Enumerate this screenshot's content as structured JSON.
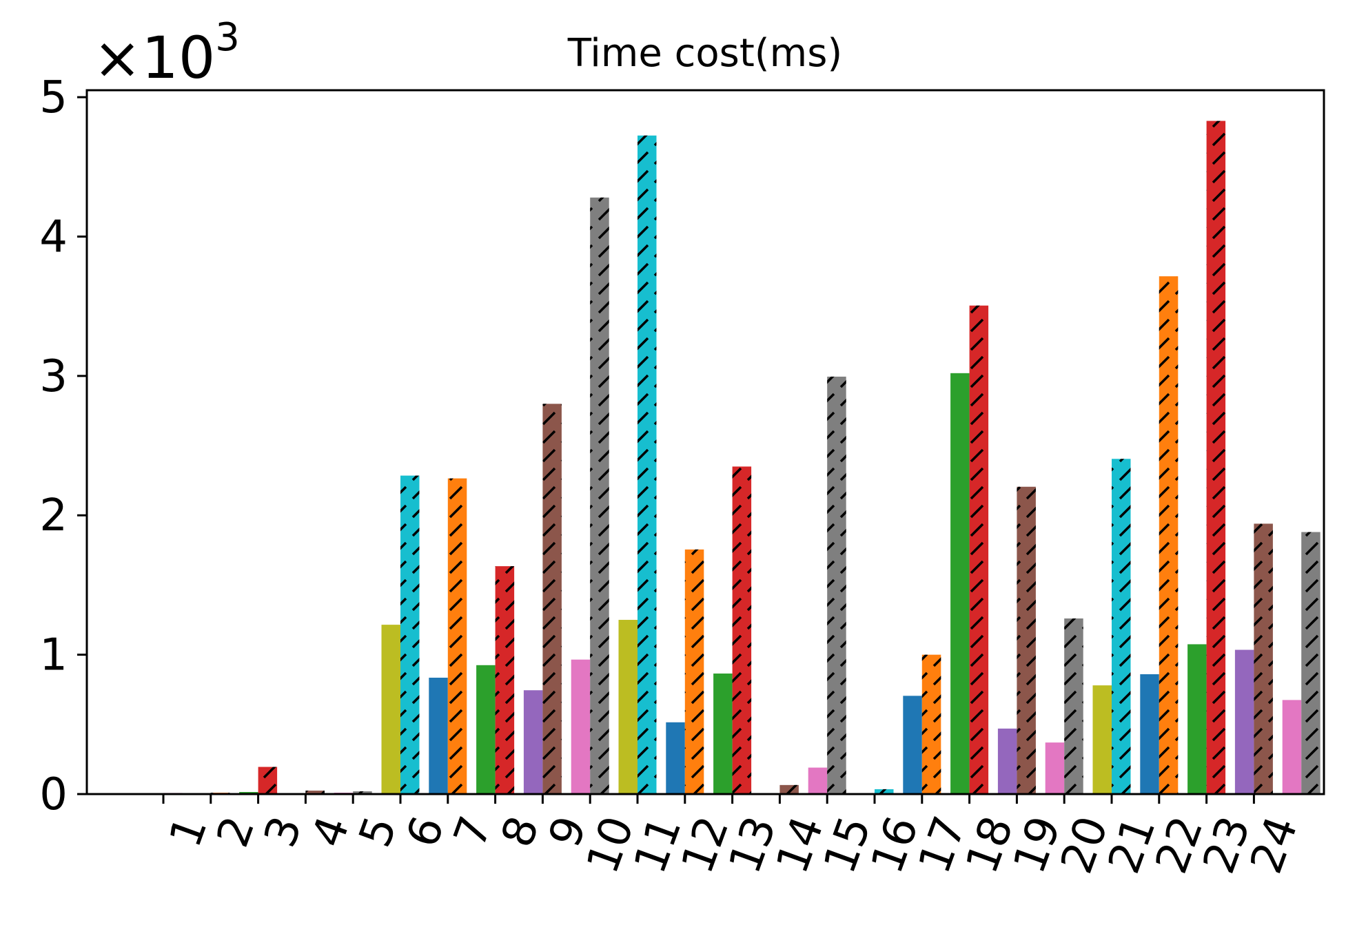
{
  "chart_data": {
    "type": "bar",
    "title": "Time cost(ms)",
    "scale_label_base": "×10",
    "scale_label_exp": "3",
    "scale_factor": 1000,
    "xlabel": "",
    "ylabel": "",
    "ylim": [
      0,
      5050
    ],
    "yticks": [
      0,
      1,
      2,
      3,
      4,
      5
    ],
    "categories": [
      "1",
      "2",
      "3",
      "4",
      "5",
      "6",
      "7",
      "8",
      "9",
      "10",
      "11",
      "12",
      "13",
      "14",
      "15",
      "16",
      "17",
      "18",
      "19",
      "20",
      "21",
      "22",
      "23",
      "24"
    ],
    "grid": false,
    "bars": [
      {
        "color": "#8c564b",
        "hatch": false,
        "value": 3
      },
      {
        "color": "#e377c2",
        "hatch": false,
        "value": 8
      },
      {
        "color": "#bcbd22",
        "hatch": false,
        "value": 5
      },
      {
        "color": "#ff7f0e",
        "hatch": true,
        "value": 10
      },
      {
        "color": "#2ca02c",
        "hatch": false,
        "value": 15
      },
      {
        "color": "#d62728",
        "hatch": true,
        "value": 195
      },
      {
        "color": "#9467bd",
        "hatch": false,
        "value": 5
      },
      {
        "color": "#8c564b",
        "hatch": true,
        "value": 25
      },
      {
        "color": "#e377c2",
        "hatch": false,
        "value": 10
      },
      {
        "color": "#7f7f7f",
        "hatch": true,
        "value": 20
      },
      {
        "color": "#bcbd22",
        "hatch": false,
        "value": 1215
      },
      {
        "color": "#17becf",
        "hatch": true,
        "value": 2285
      },
      {
        "color": "#1f77b4",
        "hatch": false,
        "value": 835
      },
      {
        "color": "#ff7f0e",
        "hatch": true,
        "value": 2265
      },
      {
        "color": "#2ca02c",
        "hatch": false,
        "value": 925
      },
      {
        "color": "#d62728",
        "hatch": true,
        "value": 1635
      },
      {
        "color": "#9467bd",
        "hatch": false,
        "value": 745
      },
      {
        "color": "#8c564b",
        "hatch": true,
        "value": 2800
      },
      {
        "color": "#e377c2",
        "hatch": false,
        "value": 965
      },
      {
        "color": "#7f7f7f",
        "hatch": true,
        "value": 4280
      },
      {
        "color": "#bcbd22",
        "hatch": false,
        "value": 1250
      },
      {
        "color": "#17becf",
        "hatch": true,
        "value": 4725
      },
      {
        "color": "#1f77b4",
        "hatch": false,
        "value": 515
      },
      {
        "color": "#ff7f0e",
        "hatch": true,
        "value": 1755
      },
      {
        "color": "#2ca02c",
        "hatch": false,
        "value": 865
      },
      {
        "color": "#d62728",
        "hatch": true,
        "value": 2350
      },
      {
        "color": "#9467bd",
        "hatch": false,
        "value": 5
      },
      {
        "color": "#8c564b",
        "hatch": true,
        "value": 65
      },
      {
        "color": "#e377c2",
        "hatch": false,
        "value": 190
      },
      {
        "color": "#7f7f7f",
        "hatch": true,
        "value": 2995
      },
      {
        "color": "#bcbd22",
        "hatch": false,
        "value": 5
      },
      {
        "color": "#17becf",
        "hatch": true,
        "value": 35
      },
      {
        "color": "#1f77b4",
        "hatch": false,
        "value": 705
      },
      {
        "color": "#ff7f0e",
        "hatch": true,
        "value": 1000
      },
      {
        "color": "#2ca02c",
        "hatch": false,
        "value": 3020
      },
      {
        "color": "#d62728",
        "hatch": true,
        "value": 3505
      },
      {
        "color": "#9467bd",
        "hatch": false,
        "value": 470
      },
      {
        "color": "#8c564b",
        "hatch": true,
        "value": 2205
      },
      {
        "color": "#e377c2",
        "hatch": false,
        "value": 370
      },
      {
        "color": "#7f7f7f",
        "hatch": true,
        "value": 1260
      },
      {
        "color": "#bcbd22",
        "hatch": false,
        "value": 780
      },
      {
        "color": "#17becf",
        "hatch": true,
        "value": 2405
      },
      {
        "color": "#1f77b4",
        "hatch": false,
        "value": 860
      },
      {
        "color": "#ff7f0e",
        "hatch": true,
        "value": 3715
      },
      {
        "color": "#2ca02c",
        "hatch": false,
        "value": 1075
      },
      {
        "color": "#d62728",
        "hatch": true,
        "value": 4830
      },
      {
        "color": "#9467bd",
        "hatch": false,
        "value": 1035
      },
      {
        "color": "#8c564b",
        "hatch": true,
        "value": 1940
      },
      {
        "color": "#e377c2",
        "hatch": false,
        "value": 675
      },
      {
        "color": "#7f7f7f",
        "hatch": true,
        "value": 1880
      }
    ]
  }
}
